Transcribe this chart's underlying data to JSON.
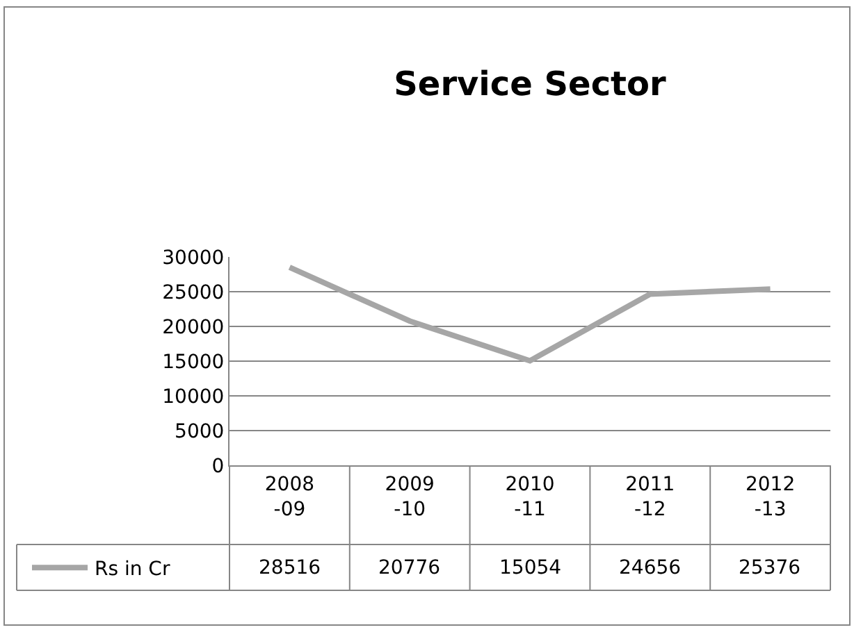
{
  "chart_data": {
    "type": "line",
    "title": "Service Sector",
    "categories": [
      "2008-09",
      "2009-10",
      "2010-11",
      "2011-12",
      "2012-13"
    ],
    "series": [
      {
        "name": "Rs in Cr",
        "color": "#a6a6a6",
        "values": [
          28516,
          20776,
          15054,
          24656,
          25376
        ]
      }
    ],
    "ylim": [
      0,
      30000
    ],
    "yticks": [
      0,
      5000,
      10000,
      15000,
      20000,
      25000,
      30000
    ],
    "grid": "y",
    "legend": "bottom left",
    "marker": "none",
    "line_style": "solid",
    "data_labels": true
  }
}
